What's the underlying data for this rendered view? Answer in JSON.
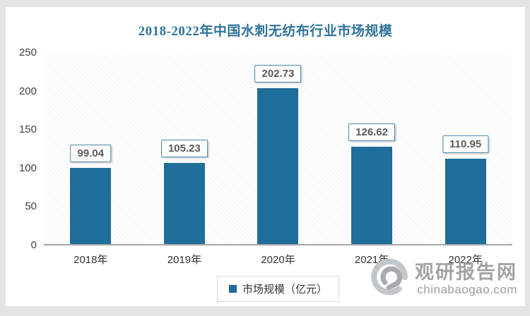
{
  "chart_data": {
    "type": "bar",
    "title": "2018-2022年中国水刺无纺布行业市场规模",
    "categories": [
      "2018年",
      "2019年",
      "2020年",
      "2021年",
      "2022年"
    ],
    "values": [
      99.04,
      105.23,
      202.73,
      126.62,
      110.95
    ],
    "series_name": "市场规模（亿元）",
    "xlabel": "",
    "ylabel": "",
    "ylim": [
      0,
      250
    ],
    "yticks": [
      0,
      50,
      100,
      150,
      200,
      250
    ],
    "grid": false,
    "legend_position": "bottom",
    "bar_color": "#1f6d99",
    "data_label_format": "2dp"
  },
  "legend": {
    "label": "市场规模（亿元）"
  },
  "watermark": {
    "brand": "观研报告网",
    "domain": "chinabaogao.com"
  },
  "colors": {
    "accent": "#1f6d99",
    "title": "#2f749c",
    "label_text": "#595959",
    "label_border": "#4c87a8",
    "axis_line": "#a6a6a6",
    "page_background": "#e4e4e4",
    "panel_background": "#ffffff",
    "watermark_grey": "#a3a3a3"
  }
}
